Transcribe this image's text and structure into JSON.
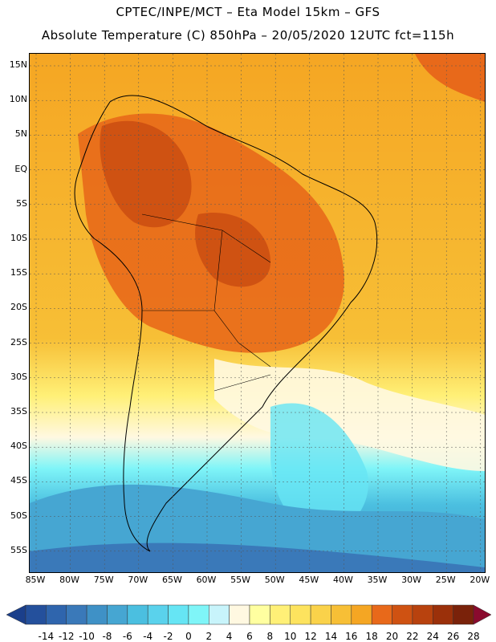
{
  "header": {
    "title_line1": "CPTEC/INPE/MCT –  Eta Model 15km – GFS",
    "title_line2": "Absolute Temperature (C) 850hPa – 20/05/2020 12UTC fct=115h"
  },
  "axes": {
    "lat_labels": [
      "15N",
      "10N",
      "5N",
      "EQ",
      "5S",
      "10S",
      "15S",
      "20S",
      "25S",
      "30S",
      "35S",
      "40S",
      "45S",
      "50S",
      "55S"
    ],
    "lon_labels": [
      "85W",
      "80W",
      "75W",
      "70W",
      "65W",
      "60W",
      "55W",
      "50W",
      "45W",
      "40W",
      "35W",
      "30W",
      "25W",
      "20W"
    ]
  },
  "colorbar": {
    "labels": [
      "-14",
      "-12",
      "-10",
      "-8",
      "-6",
      "-4",
      "-2",
      "0",
      "2",
      "4",
      "6",
      "8",
      "10",
      "12",
      "14",
      "16",
      "18",
      "20",
      "22",
      "24",
      "26",
      "28"
    ],
    "colors": [
      "#1b3f8b",
      "#24509c",
      "#2f65ad",
      "#3a79b9",
      "#3f91c6",
      "#46a6d2",
      "#4bbfe0",
      "#5ad2ec",
      "#66e5f4",
      "#7ff5f8",
      "#c8f4fb",
      "#fff8e1",
      "#ffffa0",
      "#fff077",
      "#fde35e",
      "#fad24a",
      "#f7bf36",
      "#f5a623",
      "#e8691a",
      "#cf5212",
      "#b8420e",
      "#9b300a",
      "#7a220a",
      "#8a0a2e"
    ]
  }
}
